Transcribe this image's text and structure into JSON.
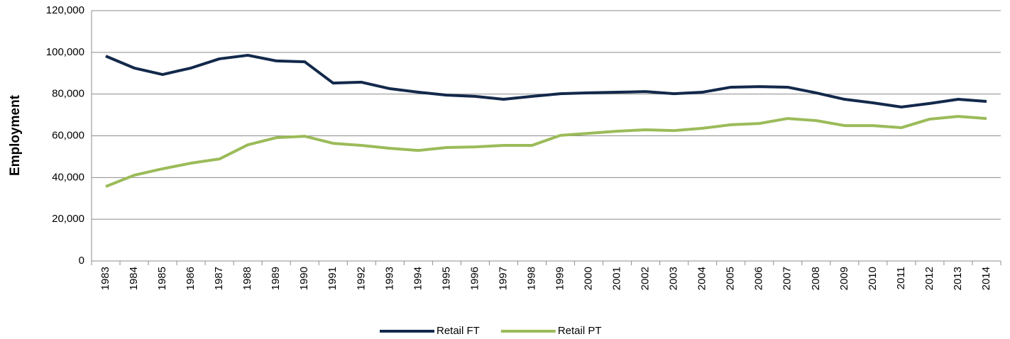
{
  "chart_data": {
    "type": "line",
    "y_label": "Employment",
    "categories": [
      "1983",
      "1984",
      "1985",
      "1986",
      "1987",
      "1988",
      "1989",
      "1990",
      "1991",
      "1992",
      "1993",
      "1994",
      "1995",
      "1996",
      "1997",
      "1998",
      "1999",
      "2000",
      "2001",
      "2002",
      "2003",
      "2004",
      "2005",
      "2006",
      "2007",
      "2008",
      "2009",
      "2010",
      "2011",
      "2012",
      "2013",
      "2014"
    ],
    "series": [
      {
        "name": "Retail FT",
        "color": "#13294b",
        "values": [
          98200,
          92500,
          89400,
          92500,
          96900,
          98600,
          95900,
          95500,
          85300,
          85700,
          82600,
          80900,
          79500,
          78900,
          77500,
          78900,
          80200,
          80600,
          80900,
          81200,
          80200,
          80900,
          83300,
          83600,
          83300,
          80600,
          77500,
          75800,
          73800,
          75500,
          77500,
          76500
        ]
      },
      {
        "name": "Retail PT",
        "color": "#9bbb59",
        "values": [
          35700,
          41100,
          44200,
          46900,
          48900,
          55700,
          59100,
          59800,
          56400,
          55400,
          54000,
          53000,
          54400,
          54700,
          55400,
          55400,
          60200,
          61200,
          62200,
          62900,
          62500,
          63600,
          65300,
          65900,
          68300,
          67300,
          64900,
          64900,
          63900,
          68000,
          69300,
          68300
        ]
      }
    ],
    "ylim": [
      0,
      120000
    ],
    "yticks": [
      0,
      {
        "value": 20000,
        "label": "20,000"
      },
      {
        "value": 40000,
        "label": "40,000"
      },
      {
        "value": 60000,
        "label": "60,000"
      },
      {
        "value": 80000,
        "label": "80,000"
      },
      {
        "value": 100000,
        "label": "100,000"
      },
      {
        "value": 120000,
        "label": "120,000"
      }
    ],
    "grid": true,
    "legend": "bottom"
  }
}
